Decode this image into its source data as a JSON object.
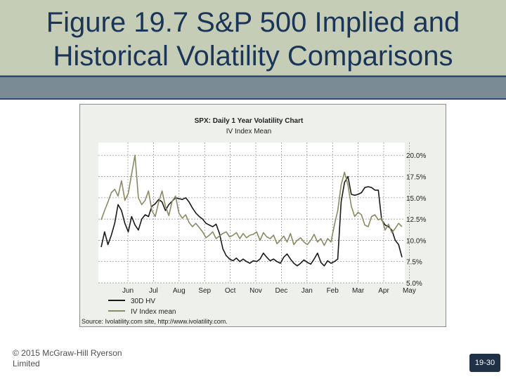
{
  "slide": {
    "title_line1": "Figure 19.7 S&P 500 Implied and",
    "title_line2": "Historical Volatility Comparisons",
    "copyright": "© 2015 McGraw-Hill Ryerson Limited",
    "page_number": "19-30"
  },
  "chart_data": {
    "type": "line",
    "title": "SPX: Daily 1 Year Volatility Chart",
    "subtitle": "IV Index Mean",
    "x_tick_labels": [
      "Jun",
      "Jul",
      "Aug",
      "Sep",
      "Oct",
      "Nov",
      "Dec",
      "Jan",
      "Feb",
      "Mar",
      "Apr",
      "May"
    ],
    "y_tick_labels": [
      "20.0%",
      "17.5%",
      "15.0%",
      "12.5%",
      "10.0%",
      "7.5%",
      "5.0%"
    ],
    "y_ticks": [
      20.0,
      17.5,
      15.0,
      12.5,
      10.0,
      7.5,
      5.0
    ],
    "ylim": [
      5.0,
      21.5
    ],
    "grid": true,
    "legend_position": "bottom-left",
    "source": "Source: Ivolatility.com site, http://www.ivolatility.com.",
    "colors": {
      "hv": "#1a1a1a",
      "iv": "#8a8a64"
    },
    "series": [
      {
        "name": "30D HV",
        "values": [
          9.2,
          11.0,
          9.5,
          10.6,
          12.0,
          14.2,
          13.5,
          12.0,
          11.0,
          12.8,
          11.8,
          11.2,
          12.5,
          13.0,
          12.8,
          14.0,
          14.3,
          14.8,
          14.5,
          13.5,
          14.2,
          14.6,
          15.0,
          14.9,
          14.8,
          15.0,
          14.5,
          13.8,
          13.2,
          12.8,
          12.5,
          12.0,
          11.8,
          11.6,
          11.9,
          10.8,
          9.0,
          8.2,
          7.8,
          7.6,
          7.9,
          7.5,
          7.8,
          7.5,
          7.3,
          7.6,
          7.5,
          7.8,
          8.5,
          8.0,
          7.6,
          7.8,
          7.5,
          7.3,
          8.0,
          8.4,
          7.8,
          7.3,
          7.0,
          7.3,
          7.7,
          7.4,
          7.2,
          7.8,
          8.5,
          7.4,
          7.0,
          7.6,
          7.3,
          7.5,
          7.8,
          14.5,
          16.8,
          17.5,
          15.4,
          15.3,
          15.4,
          15.6,
          16.2,
          16.3,
          16.2,
          15.9,
          15.9,
          12.4,
          11.8,
          11.6,
          11.2,
          10.0,
          9.5,
          8.0
        ]
      },
      {
        "name": "IV Index mean",
        "values": [
          12.4,
          13.5,
          14.5,
          15.6,
          16.0,
          15.2,
          17.0,
          14.7,
          15.5,
          17.8,
          20.0,
          15.0,
          14.2,
          14.7,
          15.8,
          13.5,
          12.8,
          14.5,
          15.8,
          14.0,
          12.9,
          14.6,
          15.2,
          13.2,
          12.6,
          13.0,
          12.1,
          11.6,
          12.0,
          11.5,
          11.0,
          10.3,
          10.6,
          11.0,
          10.2,
          10.5,
          10.8,
          11.0,
          10.4,
          10.6,
          10.9,
          10.2,
          10.8,
          10.3,
          10.6,
          10.7,
          11.0,
          10.0,
          10.9,
          10.4,
          10.2,
          10.6,
          9.6,
          10.0,
          10.5,
          9.8,
          10.8,
          9.5,
          10.0,
          10.3,
          9.8,
          9.5,
          10.0,
          10.7,
          9.8,
          10.2,
          9.4,
          10.2,
          9.8,
          11.8,
          13.5,
          16.5,
          18.0,
          16.5,
          14.0,
          12.8,
          13.3,
          13.0,
          11.8,
          11.6,
          12.8,
          13.0,
          12.4,
          12.6,
          11.2,
          11.9,
          10.9,
          11.4,
          12.0,
          11.6
        ]
      }
    ]
  }
}
